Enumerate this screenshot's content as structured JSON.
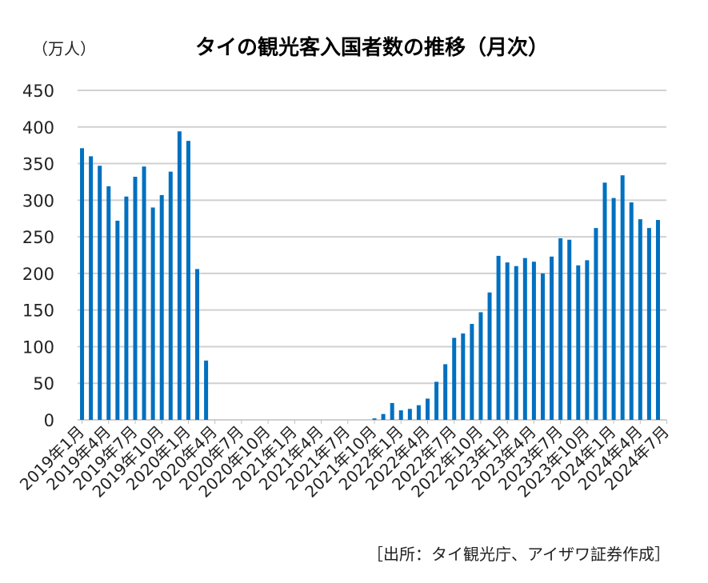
{
  "chart_data": {
    "type": "bar",
    "title": "タイの観光客入国者数の推移（月次）",
    "ylabel": "（万人）",
    "source": "［出所：タイ観光庁、アイザワ証券作成］",
    "ylim": [
      0,
      450
    ],
    "yticks": [
      0,
      50,
      100,
      150,
      200,
      250,
      300,
      350,
      400,
      450
    ],
    "grid": true,
    "color": "#0070c0",
    "tick_labels": [
      "2019年1月",
      "2019年4月",
      "2019年7月",
      "2019年10月",
      "2020年1月",
      "2020年4月",
      "2020年7月",
      "2020年10月",
      "2021年1月",
      "2021年4月",
      "2021年7月",
      "2021年10月",
      "2022年1月",
      "2022年4月",
      "2022年7月",
      "2022年10月",
      "2023年1月",
      "2023年4月",
      "2023年7月",
      "2023年10月",
      "2024年1月",
      "2024年4月",
      "2024年7月"
    ],
    "values": [
      371,
      360,
      347,
      319,
      272,
      305,
      332,
      346,
      290,
      307,
      339,
      394,
      381,
      206,
      81,
      0,
      0,
      0,
      0,
      0,
      0,
      0,
      0,
      0,
      0,
      0,
      0,
      0,
      0,
      0,
      0,
      0,
      0,
      2,
      8,
      23,
      13,
      15,
      20,
      29,
      52,
      76,
      112,
      118,
      131,
      147,
      174,
      224,
      215,
      210,
      221,
      216,
      200,
      223,
      248,
      246,
      211,
      218,
      262,
      324,
      303,
      334,
      297,
      274,
      262,
      273
    ]
  }
}
